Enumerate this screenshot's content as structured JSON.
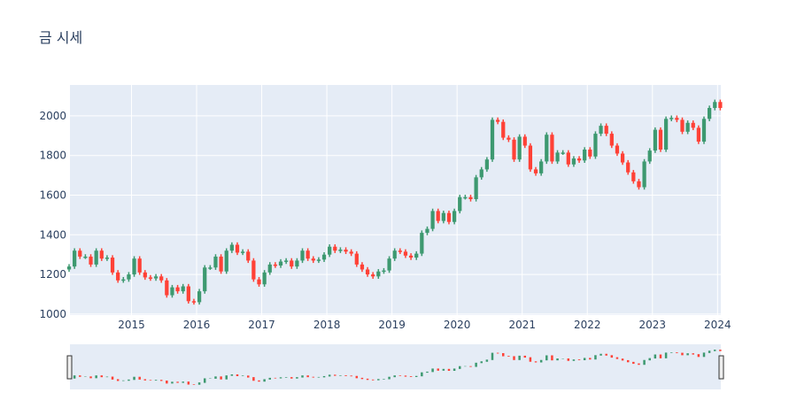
{
  "title": "금 시세",
  "chart_data": {
    "type": "candlestick",
    "title": "금 시세",
    "xlabel": "",
    "ylabel": "",
    "start": "2014-01",
    "frequency": "monthly",
    "open": [
      1225,
      1240,
      1320,
      1290,
      1290,
      1250,
      1320,
      1280,
      1285,
      1210,
      1170,
      1175,
      1200,
      1280,
      1210,
      1185,
      1180,
      1190,
      1170,
      1095,
      1135,
      1115,
      1140,
      1065,
      1060,
      1115,
      1235,
      1235,
      1290,
      1215,
      1320,
      1350,
      1310,
      1315,
      1270,
      1175,
      1150,
      1210,
      1250,
      1245,
      1265,
      1270,
      1240,
      1270,
      1320,
      1280,
      1270,
      1275,
      1300,
      1340,
      1320,
      1325,
      1315,
      1305,
      1250,
      1225,
      1200,
      1190,
      1215,
      1220,
      1280,
      1320,
      1315,
      1295,
      1285,
      1305,
      1410,
      1430,
      1520,
      1470,
      1510,
      1465,
      1520,
      1590,
      1590,
      1580,
      1690,
      1730,
      1780,
      1980,
      1970,
      1890,
      1880,
      1780,
      1895,
      1850,
      1730,
      1710,
      1770,
      1905,
      1770,
      1815,
      1815,
      1755,
      1785,
      1775,
      1830,
      1795,
      1910,
      1950,
      1910,
      1850,
      1810,
      1765,
      1715,
      1670,
      1640,
      1770,
      1825,
      1930,
      1830,
      1985,
      1990,
      1980,
      1920,
      1965,
      1940,
      1870,
      1985,
      2040,
      2070
    ],
    "close": [
      1240,
      1320,
      1290,
      1290,
      1250,
      1320,
      1280,
      1285,
      1210,
      1170,
      1175,
      1200,
      1280,
      1210,
      1185,
      1180,
      1190,
      1170,
      1095,
      1135,
      1115,
      1140,
      1065,
      1060,
      1115,
      1235,
      1235,
      1290,
      1215,
      1320,
      1350,
      1310,
      1315,
      1270,
      1175,
      1150,
      1210,
      1250,
      1245,
      1265,
      1270,
      1240,
      1270,
      1320,
      1280,
      1270,
      1275,
      1300,
      1340,
      1320,
      1325,
      1315,
      1305,
      1250,
      1225,
      1200,
      1190,
      1215,
      1220,
      1280,
      1320,
      1315,
      1295,
      1285,
      1305,
      1410,
      1430,
      1520,
      1470,
      1510,
      1465,
      1520,
      1590,
      1590,
      1580,
      1690,
      1730,
      1780,
      1980,
      1970,
      1890,
      1880,
      1780,
      1895,
      1850,
      1730,
      1710,
      1770,
      1905,
      1770,
      1815,
      1815,
      1755,
      1785,
      1775,
      1830,
      1795,
      1910,
      1950,
      1910,
      1850,
      1810,
      1765,
      1715,
      1670,
      1640,
      1770,
      1825,
      1930,
      1830,
      1985,
      1990,
      1980,
      1920,
      1965,
      1940,
      1870,
      1985,
      2040,
      2070,
      2040
    ],
    "y_ticks": [
      "1000",
      "1200",
      "1400",
      "1600",
      "1800",
      "2000"
    ],
    "x_ticks": [
      "2015",
      "2016",
      "2017",
      "2018",
      "2019",
      "2020",
      "2021",
      "2022",
      "2023",
      "2024"
    ],
    "ylim": [
      995,
      2156
    ],
    "xlim": [
      "2014-01-20",
      "2024-01-18"
    ],
    "grid": true,
    "rangeslider": true,
    "increasing_color": "#3D9970",
    "decreasing_color": "#FF4136",
    "plot_bg": "#E5ECF6"
  }
}
